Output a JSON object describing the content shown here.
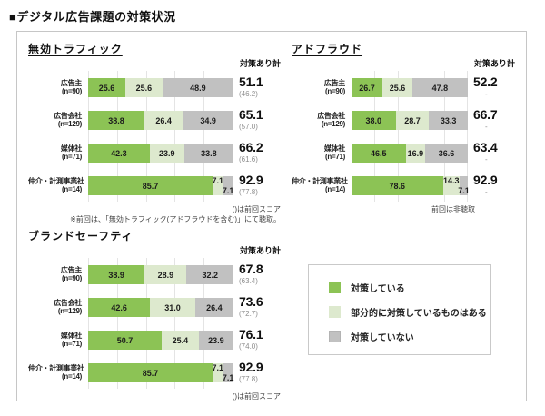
{
  "page_title": "■デジタル広告課題の対策状況",
  "colors": {
    "measured": "#8cc355",
    "partial": "#dde9ce",
    "not_measured": "#c1c1c1"
  },
  "legend": {
    "items": [
      {
        "key": "measured",
        "label": "対策している",
        "color": "#8cc355"
      },
      {
        "key": "partial",
        "label": "部分的に対策しているものはある",
        "color": "#dde9ce"
      },
      {
        "key": "not_measured",
        "label": "対策していない",
        "color": "#c1c1c1"
      }
    ]
  },
  "chart_data": [
    {
      "type": "bar",
      "stacked": true,
      "orientation": "horizontal",
      "xlim": [
        0,
        100
      ],
      "grid": true,
      "title": "無効トラフィック",
      "score_header": "対策あり計",
      "categories": [
        "広告主",
        "広告会社",
        "媒体社",
        "仲介・計測事業社"
      ],
      "category_n": [
        "(n=90)",
        "(n=129)",
        "(n=71)",
        "(n=14)"
      ],
      "series": [
        {
          "name": "対策している",
          "color": "#8cc355",
          "values": [
            25.6,
            38.8,
            42.3,
            85.7
          ]
        },
        {
          "name": "部分的に対策しているものはある",
          "color": "#dde9ce",
          "values": [
            25.6,
            26.4,
            23.9,
            7.1
          ]
        },
        {
          "name": "対策していない",
          "color": "#c1c1c1",
          "values": [
            48.9,
            34.9,
            33.8,
            7.1
          ]
        }
      ],
      "totals": [
        51.1,
        65.1,
        66.2,
        92.9
      ],
      "previous": [
        "(46.2)",
        "(57.0)",
        "(61.6)",
        "(77.8)"
      ],
      "notes": [
        "()は前回スコア",
        "※前回は、「無効トラフィック(アドフラウドを含む)」にて聴取。"
      ]
    },
    {
      "type": "bar",
      "stacked": true,
      "orientation": "horizontal",
      "xlim": [
        0,
        100
      ],
      "grid": true,
      "title": "アドフラウド",
      "score_header": "対策あり計",
      "categories": [
        "広告主",
        "広告会社",
        "媒体社",
        "仲介・計測事業社"
      ],
      "category_n": [
        "(n=90)",
        "(n=129)",
        "(n=71)",
        "(n=14)"
      ],
      "series": [
        {
          "name": "対策している",
          "color": "#8cc355",
          "values": [
            26.7,
            38.0,
            46.5,
            78.6
          ]
        },
        {
          "name": "部分的に対策しているものはある",
          "color": "#dde9ce",
          "values": [
            25.6,
            28.7,
            16.9,
            14.3
          ]
        },
        {
          "name": "対策していない",
          "color": "#c1c1c1",
          "values": [
            47.8,
            33.3,
            36.6,
            7.1
          ]
        }
      ],
      "totals": [
        52.2,
        66.7,
        63.4,
        92.9
      ],
      "previous": [
        "-",
        "-",
        "-",
        "-"
      ],
      "notes": [
        "前回は非聴取"
      ]
    },
    {
      "type": "bar",
      "stacked": true,
      "orientation": "horizontal",
      "xlim": [
        0,
        100
      ],
      "grid": true,
      "title": "ブランドセーフティ",
      "score_header": "対策あり計",
      "categories": [
        "広告主",
        "広告会社",
        "媒体社",
        "仲介・計測事業社"
      ],
      "category_n": [
        "(n=90)",
        "(n=129)",
        "(n=71)",
        "(n=14)"
      ],
      "series": [
        {
          "name": "対策している",
          "color": "#8cc355",
          "values": [
            38.9,
            42.6,
            50.7,
            85.7
          ]
        },
        {
          "name": "部分的に対策しているものはある",
          "color": "#dde9ce",
          "values": [
            28.9,
            31.0,
            25.4,
            7.1
          ]
        },
        {
          "name": "対策していない",
          "color": "#c1c1c1",
          "values": [
            32.2,
            26.4,
            23.9,
            7.1
          ]
        }
      ],
      "totals": [
        67.8,
        73.6,
        76.1,
        92.9
      ],
      "previous": [
        "(63.4)",
        "(72.7)",
        "(74.0)",
        "(77.8)"
      ],
      "notes": [
        "()は前回スコア"
      ]
    }
  ]
}
